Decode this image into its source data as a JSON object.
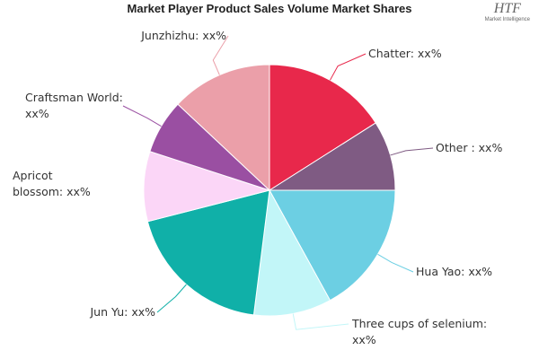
{
  "chart_data": {
    "type": "pie",
    "title": "Market Player Product Sales Volume Market Shares",
    "logo": {
      "mark": "HTF",
      "subtitle": "Market Intelligence"
    },
    "categories": [
      "Hua Yao: xx%",
      "Three cups of selenium: xx%",
      "Jun Yu: xx%",
      "Apricot blossom: xx%",
      "Craftsman World: xx%",
      "Junzhizhu: xx%",
      "Chatter: xx%",
      "Other : xx%"
    ],
    "values": [
      17,
      10,
      19,
      9,
      7,
      13,
      16,
      9
    ],
    "colors": [
      "#6ccfe3",
      "#c2f6f8",
      "#10b0a8",
      "#fbd6f7",
      "#9a4fa2",
      "#eb9fa9",
      "#e8284b",
      "#7f5b83"
    ]
  }
}
